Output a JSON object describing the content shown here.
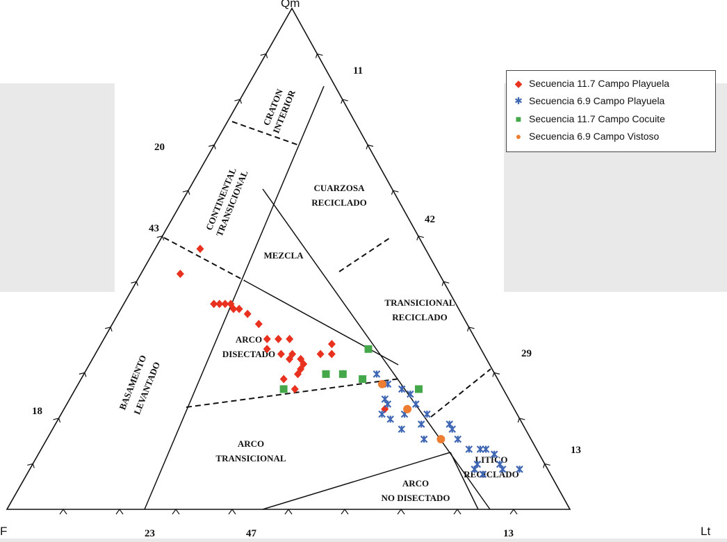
{
  "chart_data": {
    "type": "ternary-scatter",
    "apex_labels": {
      "top": "Qm",
      "left": "F",
      "right": "Lt"
    },
    "field_labels": {
      "craton": [
        "CRATON",
        "INTERIOR"
      ],
      "continental": [
        "CONTINENTAL",
        "TRANSICIONAL"
      ],
      "cuarzosa": [
        "CUARZOSA",
        "RECICLADO"
      ],
      "mezcla": [
        "MEZCLA"
      ],
      "transicional_reciclado": [
        "TRANSICIONAL",
        "RECICLADO"
      ],
      "basamento": [
        "BASAMENTO",
        "LEVANTADO"
      ],
      "arco_disectado": [
        "ARCO",
        "DISECTADO"
      ],
      "arco_transicional": [
        "ARCO",
        "TRANSICIONAL"
      ],
      "arco_no_disectado": [
        "ARCO",
        "NO DISECTADO"
      ],
      "litico": [
        "LITICO",
        "RECICLADO"
      ]
    },
    "side_numbers": {
      "n11": "11",
      "n20": "20",
      "n42": "42",
      "n43": "43",
      "n29": "29",
      "n18": "18",
      "n13_right": "13",
      "n23": "23",
      "n47": "47",
      "n13_bottom": "13"
    },
    "legend_position": "top-right",
    "series": [
      {
        "name": "Secuencia 11.7 Campo Playuela",
        "color": "#e8321f",
        "marker": "diamond",
        "points": [
          {
            "qm": 0.52,
            "f": 0.4,
            "lt": 0.08
          },
          {
            "qm": 0.47,
            "f": 0.46,
            "lt": 0.07
          },
          {
            "qm": 0.41,
            "f": 0.43,
            "lt": 0.16
          },
          {
            "qm": 0.41,
            "f": 0.42,
            "lt": 0.17
          },
          {
            "qm": 0.41,
            "f": 0.41,
            "lt": 0.18
          },
          {
            "qm": 0.41,
            "f": 0.4,
            "lt": 0.19
          },
          {
            "qm": 0.4,
            "f": 0.4,
            "lt": 0.2
          },
          {
            "qm": 0.4,
            "f": 0.39,
            "lt": 0.21
          },
          {
            "qm": 0.39,
            "f": 0.38,
            "lt": 0.23
          },
          {
            "qm": 0.37,
            "f": 0.37,
            "lt": 0.26
          },
          {
            "qm": 0.34,
            "f": 0.37,
            "lt": 0.29
          },
          {
            "qm": 0.34,
            "f": 0.35,
            "lt": 0.31
          },
          {
            "qm": 0.34,
            "f": 0.33,
            "lt": 0.33
          },
          {
            "qm": 0.32,
            "f": 0.38,
            "lt": 0.3
          },
          {
            "qm": 0.31,
            "f": 0.36,
            "lt": 0.33
          },
          {
            "qm": 0.31,
            "f": 0.34,
            "lt": 0.35
          },
          {
            "qm": 0.3,
            "f": 0.35,
            "lt": 0.35
          },
          {
            "qm": 0.3,
            "f": 0.33,
            "lt": 0.37
          },
          {
            "qm": 0.29,
            "f": 0.33,
            "lt": 0.38
          },
          {
            "qm": 0.28,
            "f": 0.34,
            "lt": 0.38
          },
          {
            "qm": 0.27,
            "f": 0.35,
            "lt": 0.38
          },
          {
            "qm": 0.26,
            "f": 0.38,
            "lt": 0.36
          },
          {
            "qm": 0.24,
            "f": 0.37,
            "lt": 0.39
          },
          {
            "qm": 0.31,
            "f": 0.29,
            "lt": 0.4
          },
          {
            "qm": 0.31,
            "f": 0.27,
            "lt": 0.42
          },
          {
            "qm": 0.33,
            "f": 0.26,
            "lt": 0.41
          },
          {
            "qm": 0.27,
            "f": 0.27,
            "lt": 0.46
          },
          {
            "qm": 0.2,
            "f": 0.23,
            "lt": 0.57
          }
        ]
      },
      {
        "name": "Secuencia 6.9 Campo Playuela",
        "color": "#3f66b3",
        "marker": "star",
        "points": [
          {
            "qm": 0.27,
            "f": 0.21,
            "lt": 0.52
          },
          {
            "qm": 0.25,
            "f": 0.2,
            "lt": 0.55
          },
          {
            "qm": 0.24,
            "f": 0.18,
            "lt": 0.58
          },
          {
            "qm": 0.23,
            "f": 0.17,
            "lt": 0.6
          },
          {
            "qm": 0.24,
            "f": 0.15,
            "lt": 0.61
          },
          {
            "qm": 0.22,
            "f": 0.22,
            "lt": 0.56
          },
          {
            "qm": 0.21,
            "f": 0.22,
            "lt": 0.57
          },
          {
            "qm": 0.19,
            "f": 0.24,
            "lt": 0.57
          },
          {
            "qm": 0.18,
            "f": 0.23,
            "lt": 0.59
          },
          {
            "qm": 0.19,
            "f": 0.2,
            "lt": 0.61
          },
          {
            "qm": 0.21,
            "f": 0.17,
            "lt": 0.62
          },
          {
            "qm": 0.19,
            "f": 0.16,
            "lt": 0.65
          },
          {
            "qm": 0.17,
            "f": 0.18,
            "lt": 0.65
          },
          {
            "qm": 0.16,
            "f": 0.22,
            "lt": 0.62
          },
          {
            "qm": 0.14,
            "f": 0.19,
            "lt": 0.67
          },
          {
            "qm": 0.17,
            "f": 0.13,
            "lt": 0.7
          },
          {
            "qm": 0.16,
            "f": 0.13,
            "lt": 0.71
          },
          {
            "qm": 0.14,
            "f": 0.13,
            "lt": 0.73
          },
          {
            "qm": 0.12,
            "f": 0.12,
            "lt": 0.76
          },
          {
            "qm": 0.12,
            "f": 0.1,
            "lt": 0.78
          },
          {
            "qm": 0.12,
            "f": 0.09,
            "lt": 0.79
          },
          {
            "qm": 0.11,
            "f": 0.08,
            "lt": 0.81
          },
          {
            "qm": 0.09,
            "f": 0.12,
            "lt": 0.79
          },
          {
            "qm": 0.08,
            "f": 0.13,
            "lt": 0.79
          },
          {
            "qm": 0.07,
            "f": 0.12,
            "lt": 0.81
          },
          {
            "qm": 0.09,
            "f": 0.08,
            "lt": 0.83
          },
          {
            "qm": 0.08,
            "f": 0.08,
            "lt": 0.84
          },
          {
            "qm": 0.08,
            "f": 0.05,
            "lt": 0.87
          }
        ]
      },
      {
        "name": "Secuencia 11.7 Campo Cocuite",
        "color": "#44a84a",
        "marker": "square",
        "points": [
          {
            "qm": 0.32,
            "f": 0.2,
            "lt": 0.48
          },
          {
            "qm": 0.27,
            "f": 0.3,
            "lt": 0.43
          },
          {
            "qm": 0.27,
            "f": 0.27,
            "lt": 0.46
          },
          {
            "qm": 0.26,
            "f": 0.24,
            "lt": 0.5
          },
          {
            "qm": 0.24,
            "f": 0.39,
            "lt": 0.37
          },
          {
            "qm": 0.24,
            "f": 0.15,
            "lt": 0.61
          }
        ]
      },
      {
        "name": "Secuencia 6.9 Campo Vistoso",
        "color": "#ed7d31",
        "marker": "circle",
        "points": [
          {
            "qm": 0.25,
            "f": 0.21,
            "lt": 0.54
          },
          {
            "qm": 0.2,
            "f": 0.19,
            "lt": 0.61
          },
          {
            "qm": 0.14,
            "f": 0.16,
            "lt": 0.7
          }
        ]
      }
    ]
  }
}
